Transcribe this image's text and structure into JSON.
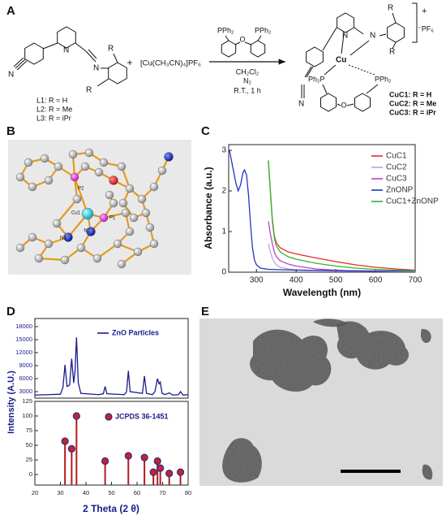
{
  "panel_labels": [
    "A",
    "B",
    "C",
    "D",
    "E"
  ],
  "scheme": {
    "ligand": {
      "nitrile_n": "N",
      "pyridine_n": "N",
      "imine_n": "N",
      "r_top": "R",
      "r_bottom": "R"
    },
    "ligand_labels": [
      "L1: R = H",
      "L2: R = Me",
      "L3: R = iPr"
    ],
    "plus": "+",
    "copper_salt": "[Cu(CH₃CN)₄]PF₆",
    "diphosphine": {
      "p_left": "PPh₂",
      "p_right": "PPh₂",
      "o": "O"
    },
    "conditions": [
      "CH₂Cl₂",
      "N₂",
      "R.T., 1 h"
    ],
    "product": {
      "pyridine_n": "N",
      "imine_n": "N",
      "r_top": "R",
      "r_bottom": "R",
      "cu": "Cu",
      "nitrile_n": "N",
      "p_left": "Ph₂P",
      "p_right": "PPh₂",
      "o": "O",
      "charge": "+",
      "anion": "⁻PF₆"
    },
    "product_labels": [
      "CuC1: R = H",
      "CuC2: R = Me",
      "CuC3: R = iPr"
    ]
  },
  "crystal": {
    "atom_labels": [
      "P2",
      "Cu1",
      "P1",
      "N2",
      "N3"
    ]
  },
  "chart_data": [
    {
      "type": "line",
      "ylabel": "Absorbance (a.u.)",
      "xlabel": "Wavelength (nm)",
      "xlim": [
        230,
        700
      ],
      "xticks": [
        300,
        400,
        500,
        600,
        700
      ],
      "ylim": [
        0,
        3.14
      ],
      "yticks": [
        0,
        1,
        2,
        3
      ],
      "legend": "upper right",
      "series": [
        {
          "name": "CuC1",
          "color": "#e0301e",
          "x": [
            330,
            335,
            340,
            345,
            350,
            360,
            380,
            400,
            450,
            500,
            550,
            600,
            650,
            700
          ],
          "values": [
            2.75,
            2.0,
            1.3,
            0.9,
            0.72,
            0.6,
            0.5,
            0.45,
            0.35,
            0.26,
            0.18,
            0.12,
            0.08,
            0.05
          ]
        },
        {
          "name": "CuC2",
          "color": "#b9a6e0",
          "x": [
            330,
            335,
            340,
            345,
            350,
            360,
            380,
            400,
            450,
            500,
            550,
            600,
            650,
            700
          ],
          "values": [
            0.7,
            0.5,
            0.35,
            0.25,
            0.18,
            0.12,
            0.08,
            0.06,
            0.04,
            0.03,
            0.02,
            0.02,
            0.01,
            0.01
          ]
        },
        {
          "name": "CuC3",
          "color": "#c23fc8",
          "x": [
            330,
            335,
            340,
            345,
            350,
            360,
            380,
            400,
            450,
            500,
            550,
            600,
            650,
            700
          ],
          "values": [
            1.25,
            0.95,
            0.7,
            0.5,
            0.38,
            0.28,
            0.2,
            0.15,
            0.08,
            0.05,
            0.03,
            0.02,
            0.02,
            0.02
          ]
        },
        {
          "name": "ZnONP",
          "color": "#2233c4",
          "x": [
            232,
            240,
            248,
            254,
            260,
            266,
            270,
            275,
            280,
            285,
            290,
            295,
            300,
            310,
            330,
            400,
            500,
            600,
            700
          ],
          "values": [
            3.0,
            2.6,
            2.2,
            2.0,
            2.15,
            2.45,
            2.52,
            2.4,
            1.9,
            1.2,
            0.6,
            0.3,
            0.18,
            0.1,
            0.07,
            0.05,
            0.04,
            0.03,
            0.03
          ]
        },
        {
          "name": "CuC1+ZnONP",
          "color": "#2fb52f",
          "x": [
            330,
            335,
            340,
            345,
            350,
            360,
            380,
            400,
            450,
            500,
            550,
            600,
            650,
            700
          ],
          "values": [
            2.75,
            2.0,
            1.25,
            0.85,
            0.65,
            0.5,
            0.38,
            0.32,
            0.22,
            0.15,
            0.1,
            0.07,
            0.05,
            0.04
          ]
        }
      ]
    },
    {
      "type": "line",
      "ylabel": "Intensity (A.U.)",
      "xlim": [
        20,
        80
      ],
      "ylim": [
        1500,
        19875
      ],
      "yticks": [
        3000,
        6000,
        9000,
        12000,
        15000,
        18000
      ],
      "legend": "upper right",
      "series": [
        {
          "name": "ZnO Particles",
          "color": "#1a1a8c",
          "x": [
            20,
            25,
            30,
            31,
            31.8,
            32.6,
            33.6,
            34.4,
            35.2,
            35.7,
            36.3,
            37,
            38,
            45,
            46.8,
            47.5,
            48.2,
            55,
            55.9,
            56.6,
            57.3,
            62.1,
            62.9,
            63.7,
            66,
            67,
            68,
            68.6,
            69.1,
            69.8,
            71,
            72.6,
            74,
            76.2,
            77,
            78,
            80
          ],
          "values": [
            2200,
            2300,
            2400,
            4000,
            9200,
            4200,
            4500,
            10600,
            5000,
            7500,
            15500,
            5000,
            2600,
            2300,
            2500,
            4200,
            2500,
            2300,
            3000,
            7800,
            3000,
            2600,
            6600,
            2600,
            2300,
            3000,
            6000,
            4800,
            5200,
            2600,
            2300,
            2700,
            2200,
            2300,
            3000,
            2200,
            2300
          ]
        }
      ]
    },
    {
      "type": "stem",
      "xlabel": "2 Theta (2 θ)",
      "xlim": [
        20,
        80
      ],
      "xticks": [
        20,
        30,
        40,
        50,
        60,
        70,
        80
      ],
      "ylim": [
        -18,
        125
      ],
      "yticks": [
        0,
        25,
        50,
        75,
        100,
        125
      ],
      "legend": "upper right",
      "series": [
        {
          "name": "JCPDS 36-1451",
          "color": "#b01c1c",
          "x": [
            31.8,
            34.4,
            36.3,
            47.5,
            56.6,
            62.9,
            66.4,
            68,
            69.1,
            72.6,
            77
          ],
          "values": [
            57,
            44,
            100,
            23,
            32,
            29,
            4,
            23,
            11,
            2,
            4
          ]
        }
      ]
    }
  ]
}
